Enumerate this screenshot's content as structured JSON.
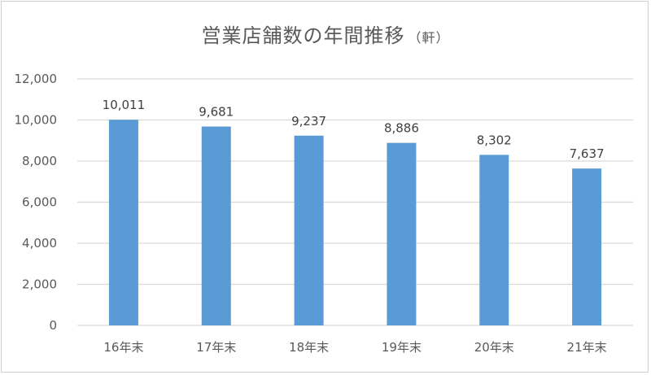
{
  "chart_data": {
    "type": "bar",
    "title": "営業店舗数の年間推移",
    "title_unit": "（軒）",
    "categories": [
      "16年末",
      "17年末",
      "18年末",
      "19年末",
      "20年末",
      "21年末"
    ],
    "series": [
      {
        "values": [
          10011,
          9681,
          9237,
          8886,
          8302,
          7637
        ]
      }
    ],
    "data_labels": [
      "10,011",
      "9,681",
      "9,237",
      "8,886",
      "8,302",
      "7,637"
    ],
    "y_ticks": [
      "0",
      "2,000",
      "4,000",
      "6,000",
      "8,000",
      "10,000",
      "12,000"
    ],
    "ylim": [
      0,
      12000
    ],
    "grid": true,
    "legend": "none",
    "bar_color": "#5b9bd5",
    "grid_color": "#d9d9d9"
  }
}
